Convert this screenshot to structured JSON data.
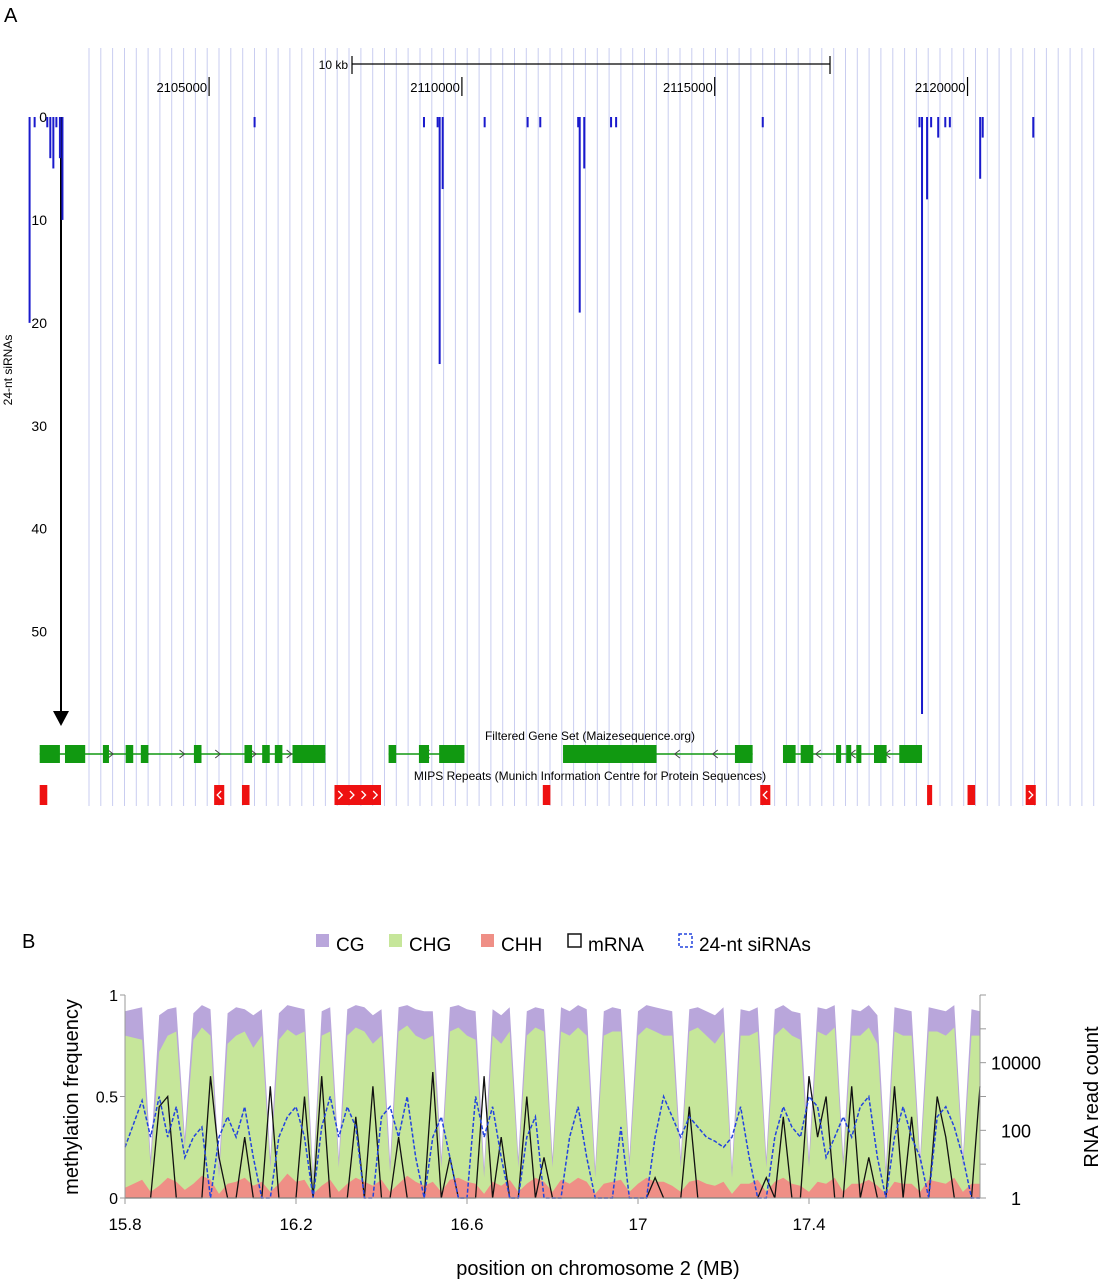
{
  "panel_a": {
    "panel_label": "A",
    "scale_label": "10 kb",
    "coordinate_labels": [
      "2105000",
      "2110000",
      "2115000",
      "2120000"
    ],
    "y_axis_title": "24-nt siRNAs",
    "y_ticks": [
      "0",
      "10",
      "20",
      "30",
      "40",
      "50"
    ],
    "gene_track_label": "Filtered Gene Set (Maizesequence.org)",
    "repeat_track_label": "MIPS Repeats (Munich Information Centre for Protein Sequences)",
    "colors": {
      "grid": "#c9cdf0",
      "sirna": "#1a1acc",
      "gene": "#119911",
      "repeat": "#ee1111"
    }
  },
  "panel_b": {
    "panel_label": "B",
    "legend": [
      "CG",
      "CHG",
      "CHH",
      "mRNA",
      "24-nt siRNAs"
    ],
    "y_left_title": "methylation frequency",
    "y_left_ticks": [
      "1",
      "0.5",
      "0"
    ],
    "y_right_title": "RNA read count",
    "y_right_ticks": [
      "10000",
      "100",
      "1"
    ],
    "x_title": "position on chromosome 2 (MB)",
    "x_ticks": [
      "15.8",
      "16.2",
      "16.6",
      "17",
      "17.4"
    ],
    "colors": {
      "CG": "#b9a6db",
      "CHG": "#c6e69a",
      "CHH": "#ef8f86",
      "mRNA": "#111111",
      "siRNA": "#2244dd"
    }
  },
  "chart_data": [
    {
      "type": "bar",
      "ylabel": "24-nt siRNAs",
      "xlim": [
        2101300,
        2122600
      ],
      "ylim": [
        0,
        58
      ],
      "x_ticks": [
        2105000,
        2110000,
        2115000,
        2120000
      ],
      "bars": [
        {
          "x": 2101450,
          "value": 20
        },
        {
          "x": 2101550,
          "value": 1
        },
        {
          "x": 2101800,
          "value": 1
        },
        {
          "x": 2101860,
          "value": 4
        },
        {
          "x": 2101920,
          "value": 5
        },
        {
          "x": 2101980,
          "value": 1
        },
        {
          "x": 2102050,
          "value": 4
        },
        {
          "x": 2102100,
          "value": 10
        },
        {
          "x": 2105900,
          "value": 1
        },
        {
          "x": 2109250,
          "value": 1
        },
        {
          "x": 2109520,
          "value": 1
        },
        {
          "x": 2109560,
          "value": 24
        },
        {
          "x": 2109620,
          "value": 7
        },
        {
          "x": 2110450,
          "value": 1
        },
        {
          "x": 2111300,
          "value": 1
        },
        {
          "x": 2111550,
          "value": 1
        },
        {
          "x": 2112300,
          "value": 1
        },
        {
          "x": 2112330,
          "value": 19
        },
        {
          "x": 2112420,
          "value": 5
        },
        {
          "x": 2112950,
          "value": 1
        },
        {
          "x": 2113050,
          "value": 1
        },
        {
          "x": 2115950,
          "value": 1
        },
        {
          "x": 2119050,
          "value": 1
        },
        {
          "x": 2119100,
          "value": 60
        },
        {
          "x": 2119200,
          "value": 8
        },
        {
          "x": 2119280,
          "value": 1
        },
        {
          "x": 2119420,
          "value": 2
        },
        {
          "x": 2119560,
          "value": 1
        },
        {
          "x": 2119650,
          "value": 1
        },
        {
          "x": 2120250,
          "value": 6
        },
        {
          "x": 2120300,
          "value": 2
        },
        {
          "x": 2121300,
          "value": 2
        }
      ],
      "genes": [
        {
          "start": 2101650,
          "end": 2107300,
          "strand": "+",
          "exons": [
            [
              2101650,
              2102050
            ],
            [
              2102150,
              2102550
            ],
            [
              2102900,
              2103020
            ],
            [
              2103350,
              2103500
            ],
            [
              2103650,
              2103800
            ],
            [
              2104700,
              2104850
            ],
            [
              2105700,
              2105850
            ],
            [
              2106050,
              2106200
            ],
            [
              2106300,
              2106450
            ],
            [
              2106650,
              2107300
            ]
          ]
        },
        {
          "start": 2108550,
          "end": 2110050,
          "strand": "-",
          "exons": [
            [
              2108550,
              2108700
            ],
            [
              2109150,
              2109350
            ],
            [
              2109550,
              2110050
            ]
          ]
        },
        {
          "start": 2112000,
          "end": 2115750,
          "strand": "-",
          "exons": [
            [
              2112000,
              2113850
            ],
            [
              2115400,
              2115750
            ]
          ]
        },
        {
          "start": 2116350,
          "end": 2119100,
          "strand": "-",
          "exons": [
            [
              2116350,
              2116600
            ],
            [
              2116700,
              2116950
            ],
            [
              2117400,
              2117500
            ],
            [
              2117600,
              2117700
            ],
            [
              2117800,
              2117900
            ],
            [
              2118150,
              2118400
            ],
            [
              2118650,
              2119100
            ]
          ]
        }
      ],
      "repeats": [
        {
          "start": 2101650,
          "end": 2101800,
          "strand": ""
        },
        {
          "start": 2105100,
          "end": 2105300,
          "strand": "-"
        },
        {
          "start": 2105650,
          "end": 2105800,
          "strand": ""
        },
        {
          "start": 2107480,
          "end": 2108400,
          "strand": "+"
        },
        {
          "start": 2111600,
          "end": 2111750,
          "strand": ""
        },
        {
          "start": 2115900,
          "end": 2116100,
          "strand": "-"
        },
        {
          "start": 2119200,
          "end": 2119300,
          "strand": ""
        },
        {
          "start": 2120000,
          "end": 2120150,
          "strand": ""
        },
        {
          "start": 2121150,
          "end": 2121350,
          "strand": "+"
        }
      ]
    },
    {
      "type": "area",
      "xlabel": "position on chromosome 2 (MB)",
      "ylabel": "methylation frequency",
      "y2label": "RNA read count",
      "xlim": [
        15.8,
        17.8
      ],
      "ylim": [
        0,
        1
      ],
      "y2_scale": "log",
      "y2lim": [
        1,
        1000000
      ],
      "x_ticks": [
        15.8,
        16.2,
        16.6,
        17.0,
        17.4
      ],
      "x": [
        15.8,
        15.84,
        15.86,
        15.88,
        15.9,
        15.92,
        15.94,
        15.96,
        15.98,
        16.0,
        16.02,
        16.04,
        16.06,
        16.08,
        16.1,
        16.12,
        16.14,
        16.16,
        16.18,
        16.2,
        16.22,
        16.24,
        16.26,
        16.28,
        16.3,
        16.32,
        16.34,
        16.36,
        16.38,
        16.4,
        16.42,
        16.44,
        16.46,
        16.48,
        16.5,
        16.52,
        16.54,
        16.56,
        16.58,
        16.6,
        16.62,
        16.64,
        16.66,
        16.68,
        16.7,
        16.72,
        16.74,
        16.76,
        16.78,
        16.8,
        16.82,
        16.84,
        16.86,
        16.88,
        16.9,
        16.92,
        16.94,
        16.96,
        16.98,
        17.0,
        17.02,
        17.04,
        17.06,
        17.08,
        17.1,
        17.12,
        17.14,
        17.16,
        17.18,
        17.2,
        17.22,
        17.24,
        17.26,
        17.28,
        17.3,
        17.32,
        17.34,
        17.36,
        17.38,
        17.4,
        17.42,
        17.44,
        17.46,
        17.48,
        17.5,
        17.52,
        17.54,
        17.56,
        17.58,
        17.6,
        17.62,
        17.64,
        17.66,
        17.68,
        17.7,
        17.72,
        17.74,
        17.76,
        17.78,
        17.8
      ],
      "series": [
        {
          "name": "CG",
          "values": [
            0.92,
            0.94,
            0.2,
            0.9,
            0.93,
            0.94,
            0.3,
            0.91,
            0.95,
            0.93,
            0.15,
            0.91,
            0.94,
            0.93,
            0.9,
            0.93,
            0.2,
            0.91,
            0.95,
            0.94,
            0.93,
            0.12,
            0.92,
            0.94,
            0.2,
            0.93,
            0.95,
            0.94,
            0.9,
            0.93,
            0.18,
            0.94,
            0.95,
            0.93,
            0.92,
            0.92,
            0.2,
            0.94,
            0.95,
            0.93,
            0.92,
            0.15,
            0.93,
            0.9,
            0.94,
            0.2,
            0.92,
            0.94,
            0.93,
            0.2,
            0.94,
            0.92,
            0.95,
            0.93,
            0.15,
            0.92,
            0.94,
            0.93,
            0.2,
            0.92,
            0.95,
            0.94,
            0.93,
            0.92,
            0.2,
            0.93,
            0.94,
            0.92,
            0.9,
            0.94,
            0.15,
            0.93,
            0.92,
            0.94,
            0.2,
            0.93,
            0.95,
            0.92,
            0.91,
            0.2,
            0.94,
            0.93,
            0.95,
            0.2,
            0.93,
            0.92,
            0.95,
            0.9,
            0.15,
            0.94,
            0.93,
            0.92,
            0.2,
            0.94,
            0.93,
            0.92,
            0.95,
            0.2,
            0.93,
            0.92
          ]
        },
        {
          "name": "CHG",
          "values": [
            0.8,
            0.78,
            0.15,
            0.72,
            0.8,
            0.82,
            0.25,
            0.78,
            0.84,
            0.8,
            0.1,
            0.76,
            0.8,
            0.82,
            0.74,
            0.8,
            0.15,
            0.78,
            0.83,
            0.8,
            0.82,
            0.08,
            0.8,
            0.82,
            0.15,
            0.8,
            0.84,
            0.82,
            0.76,
            0.8,
            0.12,
            0.82,
            0.85,
            0.8,
            0.78,
            0.8,
            0.15,
            0.82,
            0.84,
            0.8,
            0.78,
            0.1,
            0.8,
            0.76,
            0.82,
            0.15,
            0.8,
            0.84,
            0.82,
            0.15,
            0.82,
            0.8,
            0.84,
            0.8,
            0.1,
            0.8,
            0.82,
            0.82,
            0.15,
            0.8,
            0.84,
            0.82,
            0.8,
            0.8,
            0.15,
            0.82,
            0.84,
            0.8,
            0.76,
            0.82,
            0.1,
            0.8,
            0.8,
            0.82,
            0.15,
            0.8,
            0.84,
            0.8,
            0.78,
            0.15,
            0.82,
            0.8,
            0.84,
            0.15,
            0.8,
            0.8,
            0.84,
            0.76,
            0.1,
            0.82,
            0.8,
            0.8,
            0.15,
            0.82,
            0.82,
            0.8,
            0.84,
            0.15,
            0.8,
            0.8
          ]
        },
        {
          "name": "CHH",
          "values": [
            0.05,
            0.09,
            0.03,
            0.06,
            0.1,
            0.08,
            0.04,
            0.07,
            0.11,
            0.09,
            0.02,
            0.07,
            0.08,
            0.1,
            0.06,
            0.08,
            0.03,
            0.07,
            0.12,
            0.08,
            0.09,
            0.02,
            0.06,
            0.09,
            0.03,
            0.07,
            0.1,
            0.08,
            0.06,
            0.09,
            0.03,
            0.07,
            0.11,
            0.08,
            0.06,
            0.08,
            0.03,
            0.09,
            0.1,
            0.08,
            0.07,
            0.02,
            0.08,
            0.06,
            0.09,
            0.03,
            0.07,
            0.1,
            0.08,
            0.03,
            0.09,
            0.07,
            0.1,
            0.08,
            0.02,
            0.07,
            0.08,
            0.09,
            0.03,
            0.07,
            0.1,
            0.08,
            0.08,
            0.06,
            0.03,
            0.08,
            0.09,
            0.07,
            0.06,
            0.08,
            0.02,
            0.07,
            0.07,
            0.09,
            0.03,
            0.08,
            0.1,
            0.07,
            0.06,
            0.03,
            0.08,
            0.07,
            0.1,
            0.03,
            0.07,
            0.07,
            0.09,
            0.06,
            0.02,
            0.08,
            0.07,
            0.07,
            0.03,
            0.09,
            0.08,
            0.07,
            0.1,
            0.03,
            0.07,
            0.07
          ]
        },
        {
          "name": "mRNA",
          "values": [
            0,
            0,
            0,
            0.45,
            0.5,
            0,
            0,
            0,
            0,
            0.6,
            0.2,
            0,
            0,
            0.3,
            0,
            0,
            0.55,
            0,
            0,
            0,
            0.5,
            0,
            0.6,
            0,
            0,
            0,
            0.4,
            0,
            0.55,
            0,
            0,
            0.3,
            0,
            0,
            0,
            0.62,
            0,
            0.2,
            0,
            0,
            0,
            0.6,
            0,
            0.3,
            0,
            0,
            0.5,
            0,
            0.2,
            0,
            0,
            0,
            0,
            0,
            0,
            0,
            0,
            0,
            0,
            0,
            0,
            0.1,
            0,
            0,
            0,
            0.45,
            0,
            0,
            0,
            0,
            0,
            0,
            0,
            0,
            0.1,
            0,
            0.4,
            0,
            0,
            0.6,
            0.3,
            0.5,
            0,
            0,
            0.55,
            0,
            0.2,
            0,
            0,
            0.55,
            0,
            0.4,
            0,
            0,
            0.5,
            0.3,
            0,
            0,
            0,
            0.55
          ]
        },
        {
          "name": "24-nt siRNAs",
          "values": [
            0.25,
            0.48,
            0.3,
            0.5,
            0.3,
            0.45,
            0.2,
            0.3,
            0.35,
            0,
            0.3,
            0.4,
            0.3,
            0.45,
            0.2,
            0,
            0,
            0.3,
            0.4,
            0.45,
            0.3,
            0,
            0.35,
            0.5,
            0.3,
            0.45,
            0.35,
            0,
            0,
            0.4,
            0.45,
            0.3,
            0.5,
            0.2,
            0,
            0.3,
            0.4,
            0.2,
            0,
            0,
            0.5,
            0.3,
            0.45,
            0.2,
            0,
            0,
            0.3,
            0.4,
            0,
            0,
            0,
            0.3,
            0.45,
            0.2,
            0,
            0,
            0,
            0.35,
            0,
            0,
            0,
            0.3,
            0.5,
            0.4,
            0.3,
            0.4,
            0.35,
            0.3,
            0.28,
            0.25,
            0.3,
            0.45,
            0.2,
            0,
            0,
            0.3,
            0.45,
            0.35,
            0.3,
            0.5,
            0.45,
            0.2,
            0.3,
            0.4,
            0.3,
            0.45,
            0.5,
            0.2,
            0,
            0.3,
            0.45,
            0.3,
            0.2,
            0,
            0.4,
            0.45,
            0.35,
            0.2,
            0,
            0
          ]
        }
      ]
    }
  ]
}
